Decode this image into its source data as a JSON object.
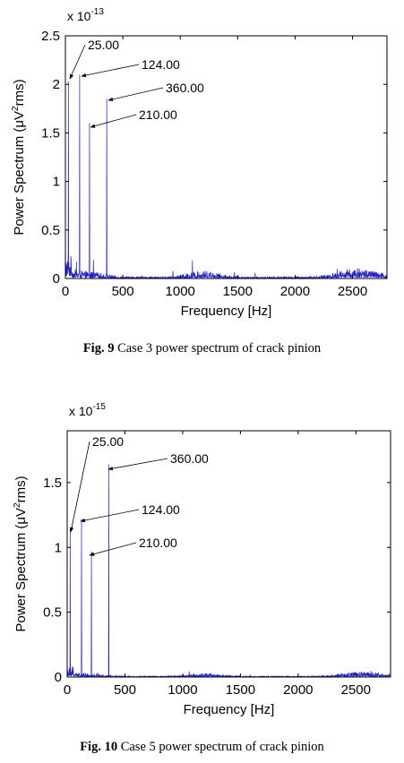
{
  "figures": [
    {
      "caption_label": "Fig. 9",
      "caption_text": "Case 3 power spectrum of crack pinion"
    },
    {
      "caption_label": "Fig. 10",
      "caption_text": "Case 5 power spectrum of crack pinion"
    }
  ],
  "chart_data": [
    {
      "type": "line",
      "xlabel": "Frequency [Hz]",
      "ylabel": "Power Spectrum (μV²rms)",
      "y_multiplier": "x 10^-13",
      "xlim": [
        0,
        2800
      ],
      "ylim": [
        0,
        2.5
      ],
      "xticks": [
        0,
        500,
        1000,
        1500,
        2000,
        2500
      ],
      "yticks": [
        0,
        0.5,
        1,
        1.5,
        2,
        2.5
      ],
      "grid": false,
      "line_color": "#2020c8",
      "peaks": [
        {
          "x": 25,
          "y": 2.03,
          "label": "25.00"
        },
        {
          "x": 124,
          "y": 2.1,
          "label": "124.00"
        },
        {
          "x": 210,
          "y": 1.6,
          "label": "210.00"
        },
        {
          "x": 360,
          "y": 1.85,
          "label": "360.00"
        }
      ]
    },
    {
      "type": "line",
      "xlabel": "Frequency [Hz]",
      "ylabel": "Power Spectrum (μV²rms)",
      "y_multiplier": "x 10^-15",
      "xlim": [
        0,
        2800
      ],
      "ylim": [
        0,
        1.9
      ],
      "xticks": [
        0,
        500,
        1000,
        1500,
        2000,
        2500
      ],
      "yticks": [
        0,
        0.5,
        1,
        1.5
      ],
      "grid": false,
      "line_color": "#2020c8",
      "peaks": [
        {
          "x": 25,
          "y": 1.15,
          "label": "25.00"
        },
        {
          "x": 124,
          "y": 1.22,
          "label": "124.00"
        },
        {
          "x": 210,
          "y": 0.97,
          "label": "210.00"
        },
        {
          "x": 360,
          "y": 1.64,
          "label": "360.00"
        }
      ]
    }
  ]
}
